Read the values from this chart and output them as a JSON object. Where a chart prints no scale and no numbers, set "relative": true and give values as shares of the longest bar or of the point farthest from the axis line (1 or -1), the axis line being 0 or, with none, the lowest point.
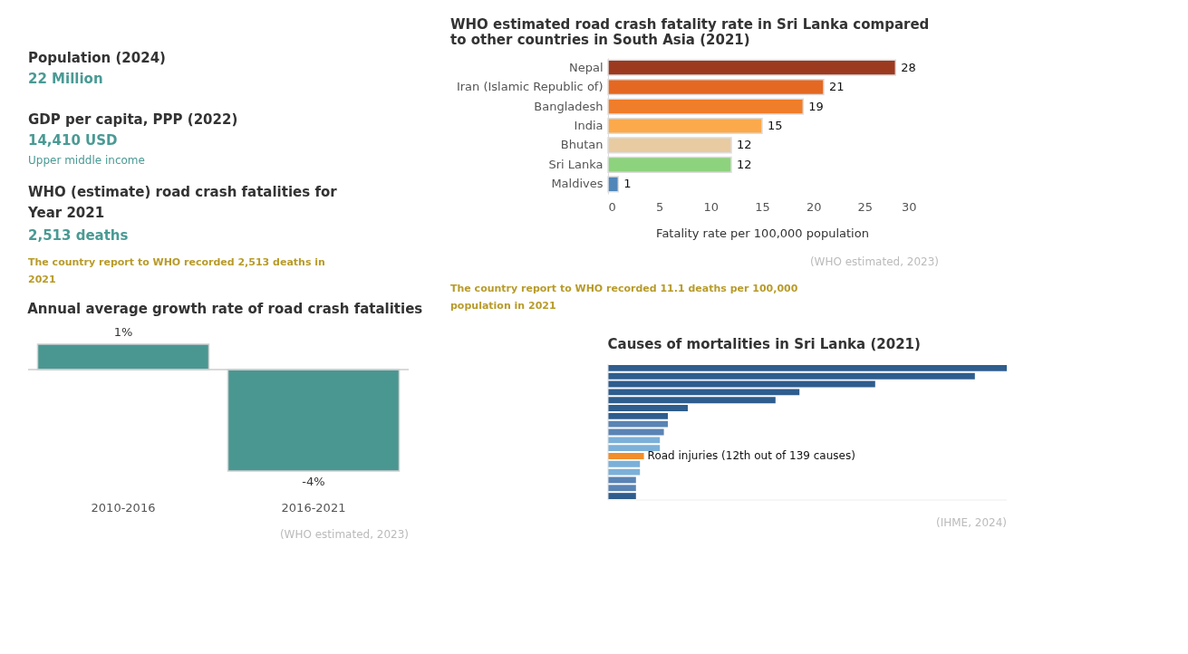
{
  "chart_data": [
    {
      "type": "other",
      "annotations": [
        "Population (2024)",
        "22 Million",
        "GDP per capita, PPP (2022)",
        "14,410 USD",
        "Upper middle income",
        "WHO (estimate) road crash fatalities for Year 2021",
        "2,513 deaths",
        "The country report to WHO recorded 2,513 deaths in 2021"
      ]
    },
    {
      "type": "bar",
      "title": "Annual average growth rate of road crash fatalities",
      "categories": [
        "2010-2016",
        "2016-2021"
      ],
      "values": [
        1,
        -4
      ],
      "value_labels": [
        "1%",
        "-4%"
      ],
      "color": "#4a9792",
      "annotations": [
        "(WHO estimated, 2023)"
      ]
    },
    {
      "type": "bar",
      "orientation": "horizontal",
      "title": "WHO estimated road crash fatality rate in Sri Lanka compared to other countries in South Asia (2021)",
      "categories": [
        "Nepal",
        "Iran (Islamic Republic of)",
        "Bangladesh",
        "India",
        "Bhutan",
        "Sri Lanka",
        "Maldives"
      ],
      "values": [
        28,
        21,
        19,
        15,
        12,
        12,
        1
      ],
      "colors": [
        "#9c3a20",
        "#e46822",
        "#ef7d2a",
        "#fba94b",
        "#e8cba0",
        "#8dd27d",
        "#5186b8"
      ],
      "xlim": [
        0,
        30
      ],
      "xticks": [
        0,
        5,
        10,
        15,
        20,
        25,
        30
      ],
      "xlabel": "Fatality rate per 100,000 population",
      "data_labels": true,
      "annotations": [
        "(WHO estimated, 2023)",
        "The country report to WHO recorded 11.1 deaths per 100,000 population in 2021"
      ]
    },
    {
      "type": "bar",
      "orientation": "horizontal",
      "relative": true,
      "title": "Causes of mortalities in Sri Lanka (2021)",
      "categories": [
        null,
        null,
        null,
        null,
        null,
        null,
        null,
        null,
        null,
        null,
        null,
        null,
        null,
        null,
        null,
        null,
        null
      ],
      "values": [
        1,
        0.92,
        0.67,
        0.48,
        0.42,
        0.2,
        0.15,
        0.15,
        0.14,
        0.13,
        0.13,
        0.09,
        0.08,
        0.08,
        0.07,
        0.07,
        0.07
      ],
      "colors": [
        "#2e5d8e",
        "#2e5d8e",
        "#2e5d8e",
        "#2e5d8e",
        "#2e5d8e",
        "#2e5d8e",
        "#2e5d8e",
        "#5a84b4",
        "#5a84b4",
        "#7cb0d8",
        "#7cb0d8",
        "#f28e2b",
        "#7cb0d8",
        "#7cb0d8",
        "#5a84b4",
        "#5a84b4",
        "#2e5d8e"
      ],
      "annotations": [
        "(IHME, 2024)",
        {
          "text": "Road injuries (12th out of 139 causes)",
          "x": 0.09
        }
      ]
    }
  ]
}
